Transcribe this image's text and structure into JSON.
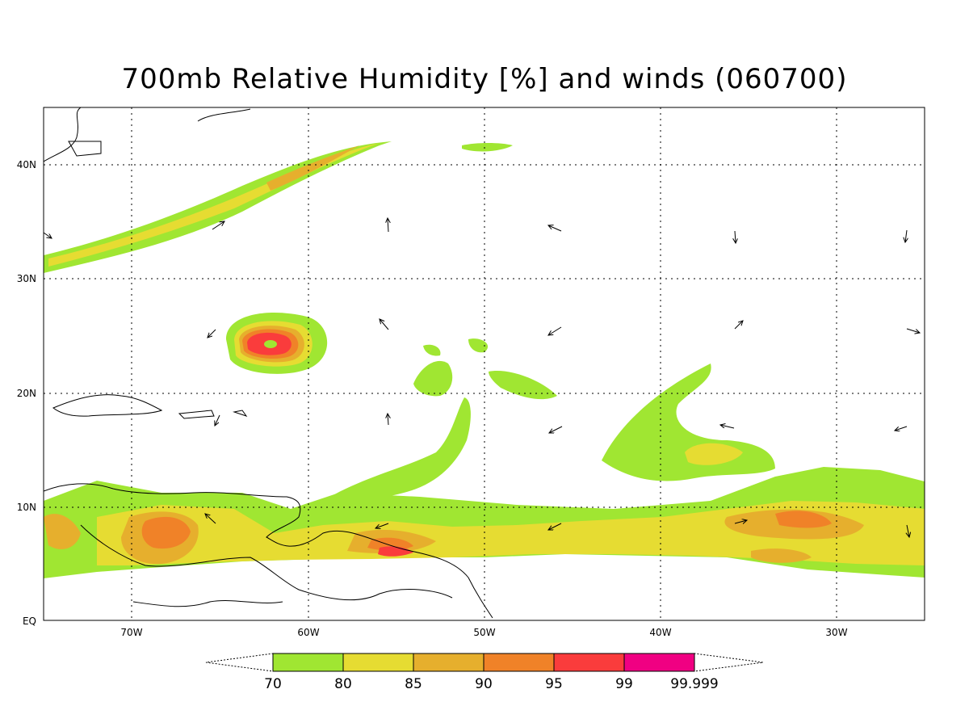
{
  "title": "700mb Relative Humidity [%] and winds (060700)",
  "lat_labels": [
    "40N",
    "30N",
    "20N",
    "10N",
    "EQ"
  ],
  "lon_labels": [
    "70W",
    "60W",
    "50W",
    "40W",
    "30W"
  ],
  "colorbar": {
    "colors": [
      "#a0e632",
      "#e6dc32",
      "#e6af2d",
      "#f08228",
      "#fa3c3c",
      "#f00082"
    ],
    "labels": [
      "70",
      "80",
      "85",
      "90",
      "95",
      "99",
      "99.999"
    ]
  },
  "colors": {
    "c70": "#a0e632",
    "c80": "#e6dc32",
    "c85": "#e6af2d",
    "c90": "#f08228",
    "c95": "#fa3c3c",
    "c99": "#f00082"
  }
}
